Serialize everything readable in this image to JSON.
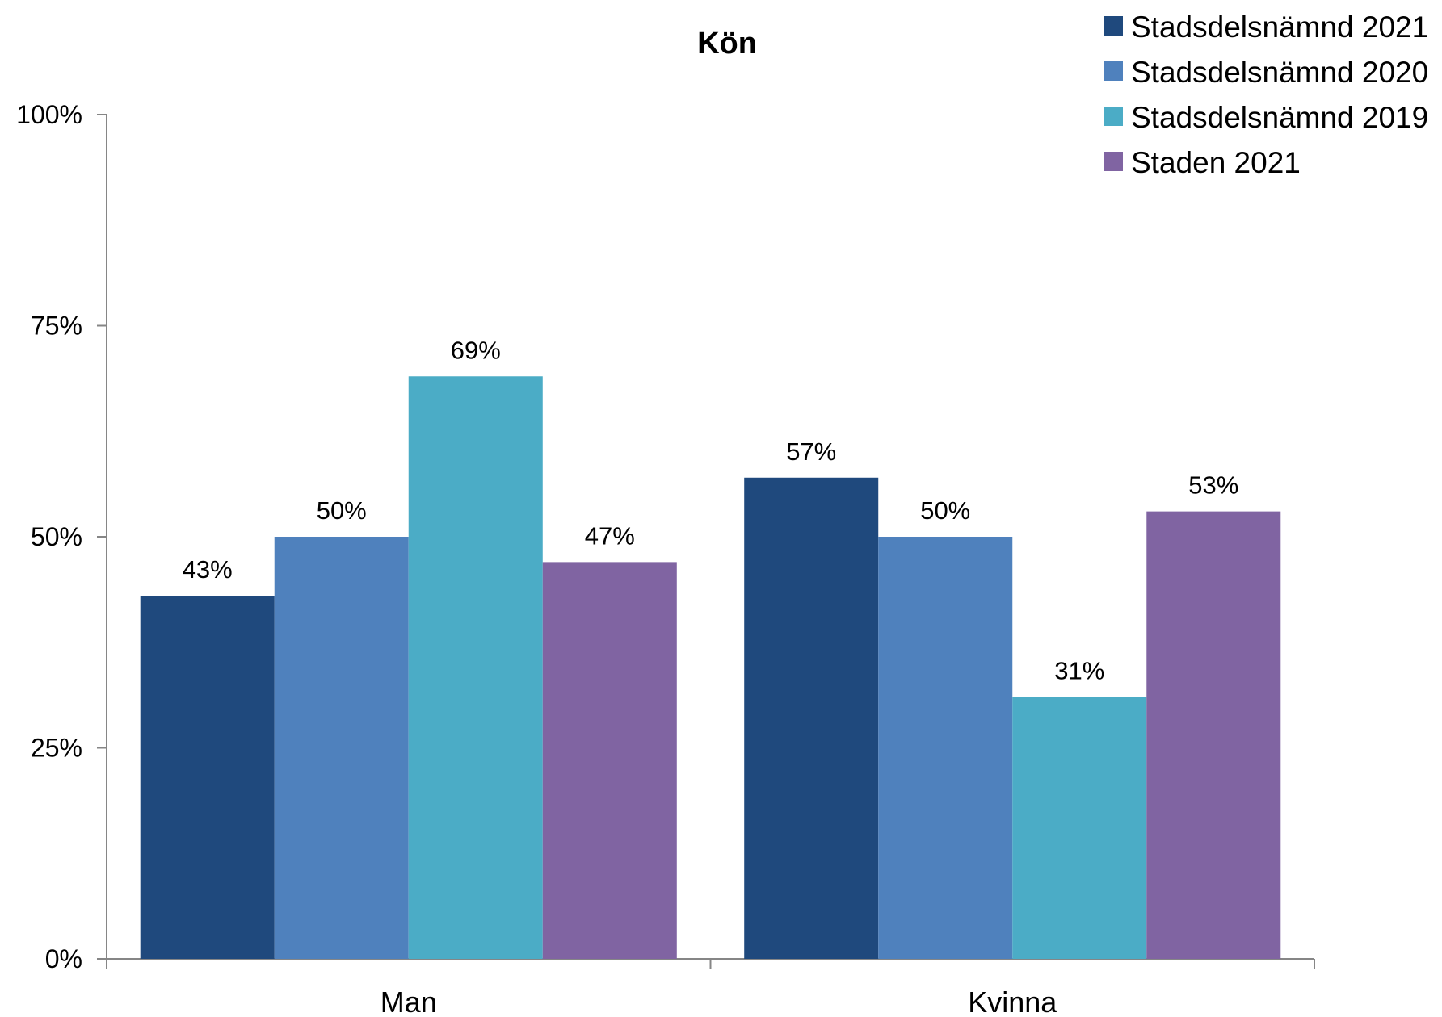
{
  "chart_data": {
    "type": "bar",
    "title": "Kön",
    "xlabel": "",
    "ylabel": "",
    "categories": [
      "Man",
      "Kvinna"
    ],
    "series": [
      {
        "name": "Stadsdelsnämnd 2021",
        "values": [
          43,
          57
        ],
        "labels": [
          "43%",
          "57%"
        ],
        "color": "#1f497d"
      },
      {
        "name": "Stadsdelsnämnd 2020",
        "values": [
          50,
          50
        ],
        "labels": [
          "50%",
          "50%"
        ],
        "color": "#4f81bd"
      },
      {
        "name": "Stadsdelsnämnd 2019",
        "values": [
          69,
          31
        ],
        "labels": [
          "69%",
          "31%"
        ],
        "color": "#4bacc6"
      },
      {
        "name": "Staden 2021",
        "values": [
          47,
          53
        ],
        "labels": [
          "47%",
          "53%"
        ],
        "color": "#8064a2"
      }
    ],
    "ylim": [
      0,
      100
    ],
    "yticks": [
      0,
      25,
      50,
      75,
      100
    ],
    "ytick_labels": [
      "0%",
      "25%",
      "50%",
      "75%",
      "100%"
    ],
    "grid": false,
    "legend_position": "top-right"
  }
}
